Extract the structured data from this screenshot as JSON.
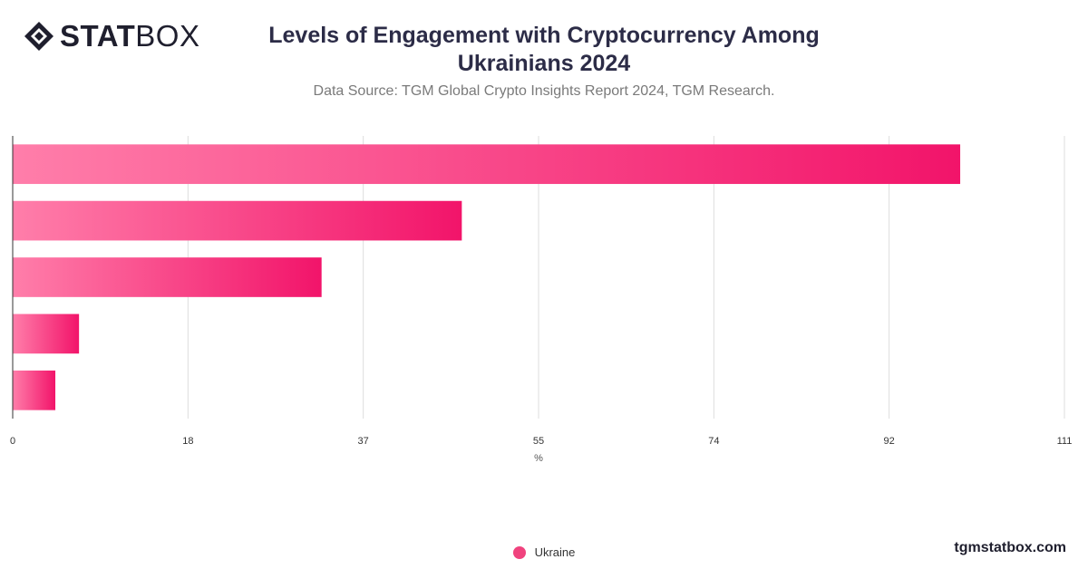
{
  "brand": {
    "logo_bold": "STAT",
    "logo_light": "BOX",
    "website": "tgmstatbox.com"
  },
  "header": {
    "title": "Levels of Engagement with Cryptocurrency Among Ukrainians 2024",
    "subtitle": "Data Source: TGM Global Crypto Insights Report 2024, TGM Research."
  },
  "colors": {
    "bar_start": "#ff7eaa",
    "bar_end": "#f2146a",
    "grid": "#dddddd",
    "legend_dot": "#f0437e"
  },
  "chart_data": {
    "type": "bar",
    "orientation": "horizontal",
    "title": "Levels of Engagement with Cryptocurrency Among Ukrainians 2024",
    "xlabel": "%",
    "ylabel": "",
    "xlim": [
      0,
      111
    ],
    "xticks": [
      "0",
      "18",
      "37",
      "55",
      "74",
      "92",
      "111"
    ],
    "categories": [
      "",
      "",
      "",
      "",
      ""
    ],
    "series": [
      {
        "name": "Ukraine",
        "values": [
          100,
          47.4,
          32.6,
          7.0,
          4.5
        ]
      }
    ],
    "grid": true,
    "legend_position": "bottom"
  }
}
